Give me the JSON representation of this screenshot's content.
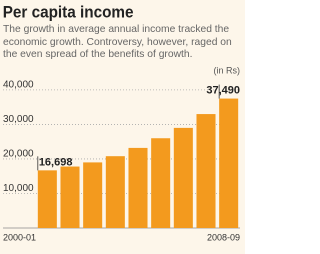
{
  "chart_data": {
    "type": "bar",
    "title": "Per capita income",
    "subtitle": "The growth in average annual income tracked the economic growth. Controversy, however, raged on the even spread of the benefits of growth.",
    "unit_label": "(in Rs)",
    "categories": [
      "2000-01",
      null,
      null,
      null,
      null,
      null,
      null,
      null,
      "2008-09"
    ],
    "values": [
      16698,
      17800,
      19000,
      20800,
      23200,
      26000,
      29000,
      33000,
      37490
    ],
    "value_labels": [
      "16,698",
      null,
      null,
      null,
      null,
      null,
      null,
      null,
      "37,490"
    ],
    "color": "#f39a1e",
    "ylim": [
      0,
      42000
    ],
    "yticks": [
      {
        "value": 10000,
        "label": "10,000"
      },
      {
        "value": 20000,
        "label": "20,000"
      },
      {
        "value": 30000,
        "label": "30,000"
      },
      {
        "value": 40000,
        "label": "40,000"
      }
    ],
    "grid": true
  }
}
